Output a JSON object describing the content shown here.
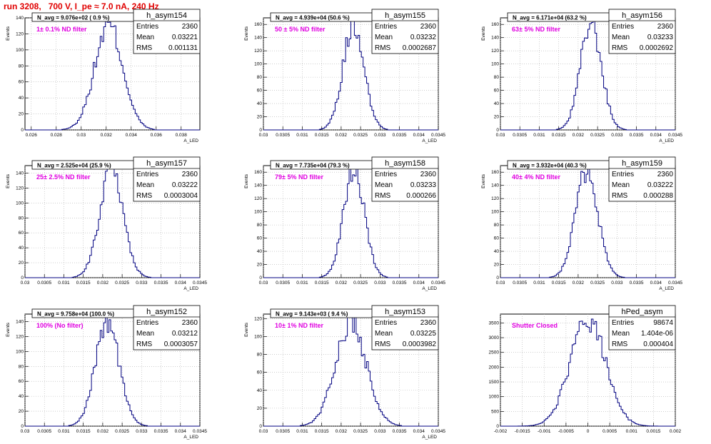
{
  "run_title": "run 3208,   700 V, I_pe ≈ 7.0 nA, 240 Hz",
  "colors": {
    "hist_line": "#000080",
    "title": "#e00000",
    "filter_label": "#e000e0",
    "grid": "#b0b0b0"
  },
  "chart_data": [
    {
      "type": "histogram",
      "name": "h_asym154",
      "navg": "N_avg = 9.076e+02 ( 0.9 %)",
      "filter": "1± 0.1% ND filter",
      "stats": {
        "Entries": "2360",
        "Mean": "0.03221",
        "RMS": "0.001131"
      },
      "xlim": [
        0.0255,
        0.0395
      ],
      "ylim": [
        0,
        140
      ],
      "xticks": [
        0.026,
        0.028,
        0.03,
        0.032,
        0.034,
        0.036,
        0.038
      ],
      "xtick_labels": [
        "0.026",
        "0.028",
        "0.03",
        "0.032",
        "0.034",
        "0.036",
        "0.038"
      ],
      "yticks": [
        0,
        20,
        40,
        60,
        80,
        100,
        120,
        140
      ],
      "xlabel": "A_LED",
      "ylabel": "Events",
      "grid": true,
      "mean": 0.03221,
      "rms": 0.001131,
      "peak": 130
    },
    {
      "type": "histogram",
      "name": "h_asym155",
      "navg": "N_avg = 4.939e+04 (50.6 %)",
      "filter": "50 ± 5% ND filter",
      "stats": {
        "Entries": "2360",
        "Mean": "0.03232",
        "RMS": "0.0002687"
      },
      "xlim": [
        0.03,
        0.0345
      ],
      "ylim": [
        0,
        170
      ],
      "xticks": [
        0.03,
        0.0305,
        0.031,
        0.0315,
        0.032,
        0.0325,
        0.033,
        0.0335,
        0.034,
        0.0345
      ],
      "xtick_labels": [
        "0.03",
        "0.0305",
        "0.031",
        "0.0315",
        "0.032",
        "0.0325",
        "0.033",
        "0.0335",
        "0.034",
        "0.0345"
      ],
      "yticks": [
        0,
        20,
        40,
        60,
        80,
        100,
        120,
        140,
        160
      ],
      "xlabel": "A_LED",
      "ylabel": "Events",
      "grid": true,
      "mean": 0.03232,
      "rms": 0.0002687,
      "peak": 162
    },
    {
      "type": "histogram",
      "name": "h_asym156",
      "navg": "N_avg = 6.171e+04 (63.2 %)",
      "filter": "63± 5% ND filter",
      "stats": {
        "Entries": "2360",
        "Mean": "0.03233",
        "RMS": "0.0002692"
      },
      "xlim": [
        0.03,
        0.0345
      ],
      "ylim": [
        0,
        170
      ],
      "xticks": [
        0.03,
        0.0305,
        0.031,
        0.0315,
        0.032,
        0.0325,
        0.033,
        0.0335,
        0.034,
        0.0345
      ],
      "xtick_labels": [
        "0.03",
        "0.0305",
        "0.031",
        "0.0315",
        "0.032",
        "0.0325",
        "0.033",
        "0.0335",
        "0.034",
        "0.0345"
      ],
      "yticks": [
        0,
        20,
        40,
        60,
        80,
        100,
        120,
        140,
        160
      ],
      "xlabel": "A_LED",
      "ylabel": "Events",
      "grid": true,
      "mean": 0.03233,
      "rms": 0.0002692,
      "peak": 162
    },
    {
      "type": "histogram",
      "name": "h_asym157",
      "navg": "N_avg = 2.525e+04 (25.9 %)",
      "filter": "25± 2.5% ND filter",
      "stats": {
        "Entries": "2360",
        "Mean": "0.03222",
        "RMS": "0.0003004"
      },
      "xlim": [
        0.03,
        0.0345
      ],
      "ylim": [
        0,
        150
      ],
      "xticks": [
        0.03,
        0.0305,
        0.031,
        0.0315,
        0.032,
        0.0325,
        0.033,
        0.0335,
        0.034,
        0.0345
      ],
      "xtick_labels": [
        "0.03",
        "0.0305",
        "0.031",
        "0.0315",
        "0.032",
        "0.0325",
        "0.033",
        "0.0335",
        "0.034",
        "0.0345"
      ],
      "yticks": [
        0,
        20,
        40,
        60,
        80,
        100,
        120,
        140
      ],
      "xlabel": "A_LED",
      "ylabel": "Events",
      "grid": true,
      "mean": 0.03222,
      "rms": 0.0003004,
      "peak": 142
    },
    {
      "type": "histogram",
      "name": "h_asym158",
      "navg": "N_avg = 7.735e+04 (79.3 %)",
      "filter": "79± 5% ND filter",
      "stats": {
        "Entries": "2360",
        "Mean": "0.03233",
        "RMS": "0.000266"
      },
      "xlim": [
        0.03,
        0.0345
      ],
      "ylim": [
        0,
        170
      ],
      "xticks": [
        0.03,
        0.0305,
        0.031,
        0.0315,
        0.032,
        0.0325,
        0.033,
        0.0335,
        0.034,
        0.0345
      ],
      "xtick_labels": [
        "0.03",
        "0.0305",
        "0.031",
        "0.0315",
        "0.032",
        "0.0325",
        "0.033",
        "0.0335",
        "0.034",
        "0.0345"
      ],
      "yticks": [
        0,
        20,
        40,
        60,
        80,
        100,
        120,
        140,
        160
      ],
      "xlabel": "A_LED",
      "ylabel": "Events",
      "grid": true,
      "mean": 0.03233,
      "rms": 0.000266,
      "peak": 164
    },
    {
      "type": "histogram",
      "name": "h_asym159",
      "navg": "N_avg = 3.932e+04 (40.3 %)",
      "filter": "40± 4% ND filter",
      "stats": {
        "Entries": "2360",
        "Mean": "0.03222",
        "RMS": "0.000288"
      },
      "xlim": [
        0.03,
        0.0345
      ],
      "ylim": [
        0,
        170
      ],
      "xticks": [
        0.03,
        0.0305,
        0.031,
        0.0315,
        0.032,
        0.0325,
        0.033,
        0.0335,
        0.034,
        0.0345
      ],
      "xtick_labels": [
        "0.03",
        "0.0305",
        "0.031",
        "0.0315",
        "0.032",
        "0.0325",
        "0.033",
        "0.0335",
        "0.034",
        "0.0345"
      ],
      "yticks": [
        0,
        20,
        40,
        60,
        80,
        100,
        120,
        140,
        160
      ],
      "xlabel": "A_LED",
      "ylabel": "Events",
      "grid": true,
      "mean": 0.03222,
      "rms": 0.000288,
      "peak": 160
    },
    {
      "type": "histogram",
      "name": "h_asym152",
      "navg": "N_avg = 9.758e+04 (100.0 %)",
      "filter": "100% (No filter)",
      "stats": {
        "Entries": "2360",
        "Mean": "0.03212",
        "RMS": "0.0003057"
      },
      "xlim": [
        0.03,
        0.0345
      ],
      "ylim": [
        0,
        150
      ],
      "xticks": [
        0.03,
        0.0305,
        0.031,
        0.0315,
        0.032,
        0.0325,
        0.033,
        0.0335,
        0.034,
        0.0345
      ],
      "xtick_labels": [
        "0.03",
        "0.0305",
        "0.031",
        "0.0315",
        "0.032",
        "0.0325",
        "0.033",
        "0.0335",
        "0.034",
        "0.0345"
      ],
      "yticks": [
        0,
        20,
        40,
        60,
        80,
        100,
        120,
        140
      ],
      "xlabel": "A_LED",
      "ylabel": "Events",
      "grid": true,
      "mean": 0.03212,
      "rms": 0.0003057,
      "peak": 140
    },
    {
      "type": "histogram",
      "name": "h_asym153",
      "navg": "N_avg = 9.143e+03 ( 9.4 %)",
      "filter": "10± 1% ND filter",
      "stats": {
        "Entries": "2360",
        "Mean": "0.03225",
        "RMS": "0.0003982"
      },
      "xlim": [
        0.03,
        0.0345
      ],
      "ylim": [
        0,
        125
      ],
      "xticks": [
        0.03,
        0.0305,
        0.031,
        0.0315,
        0.032,
        0.0325,
        0.033,
        0.0335,
        0.034,
        0.0345
      ],
      "xtick_labels": [
        "0.03",
        "0.0305",
        "0.031",
        "0.0315",
        "0.032",
        "0.0325",
        "0.033",
        "0.0335",
        "0.034",
        "0.0345"
      ],
      "yticks": [
        0,
        20,
        40,
        60,
        80,
        100,
        120
      ],
      "xlabel": "A_LED",
      "ylabel": "Events",
      "grid": true,
      "mean": 0.03225,
      "rms": 0.0003982,
      "peak": 116
    },
    {
      "type": "histogram",
      "name": "hPed_asym",
      "navg": "",
      "filter": "Shutter Closed",
      "stats": {
        "Entries": "98674",
        "Mean": "1.404e-06",
        "RMS": "0.000404"
      },
      "xlim": [
        -0.002,
        0.002
      ],
      "ylim": [
        0,
        3800
      ],
      "xticks": [
        -0.002,
        -0.0015,
        -0.001,
        -0.0005,
        0,
        0.0005,
        0.001,
        0.0015,
        0.002
      ],
      "xtick_labels": [
        "-0.002",
        "-0.0015",
        "-0.001",
        "-0.0005",
        "0",
        "0.0005",
        "0.001",
        "0.0015",
        "0.002"
      ],
      "yticks": [
        0,
        500,
        1000,
        1500,
        2000,
        2500,
        3000,
        3500
      ],
      "xlabel": "",
      "ylabel": "",
      "grid": true,
      "mean": 0.0,
      "rms": 0.000404,
      "peak": 3600
    }
  ]
}
